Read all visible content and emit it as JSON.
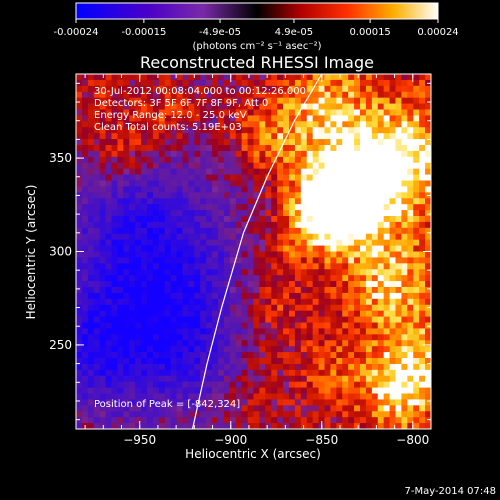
{
  "colorbar": {
    "tick_labels": [
      "-0.00024",
      "-0.00015",
      "-4.9e-05",
      "4.9e-05",
      "0.00015",
      "0.00024"
    ],
    "tick_values": [
      -0.00024,
      -0.00015,
      -4.9e-05,
      4.9e-05,
      0.00015,
      0.00024
    ],
    "range": [
      -0.00024,
      0.00024
    ],
    "unit_label": "(photons cm⁻² s⁻¹ asec⁻²)"
  },
  "annotations": {
    "time_range": "30-Jul-2012 00:08:04.000 to 00:12:26.000",
    "detectors": "Detectors: 3F 5F 6F 7F 8F 9F, Att 0",
    "energy_range": "Energy Range: 12.0 - 25.0 keV",
    "clean_counts": "Clean     Total counts: 5.19E+03",
    "peak": "Position of Peak = [-842,324]"
  },
  "footer": {
    "date": "7-May-2014 07:48"
  },
  "chart_data": {
    "type": "heatmap",
    "title": "Reconstructed RHESSI Image",
    "xlabel": "Heliocentric X (arcsec)",
    "ylabel": "Heliocentric Y (arcsec)",
    "xlim": [
      -985,
      -790
    ],
    "ylim": [
      205,
      395
    ],
    "x_ticks": [
      -950,
      -900,
      -850,
      -800
    ],
    "x_tick_labels": [
      "−950",
      "−900",
      "−850",
      "−800"
    ],
    "y_ticks": [
      250,
      300,
      350
    ],
    "y_tick_labels": [
      "250",
      "300",
      "350"
    ],
    "peak": {
      "x": -842,
      "y": 324
    },
    "limb_curve": [
      [
        -921,
        205
      ],
      [
        -913,
        240
      ],
      [
        -905,
        270
      ],
      [
        -893,
        310
      ],
      [
        -880,
        340
      ],
      [
        -865,
        370
      ],
      [
        -850,
        395
      ]
    ],
    "hot_spots": [
      {
        "x": -843,
        "y": 324,
        "amp": 1.3,
        "sigma": 15
      },
      {
        "x": -830,
        "y": 340,
        "amp": 0.55,
        "sigma": 20
      },
      {
        "x": -805,
        "y": 350,
        "amp": 0.7,
        "sigma": 22
      },
      {
        "x": -815,
        "y": 285,
        "amp": 0.6,
        "sigma": 18
      },
      {
        "x": -800,
        "y": 240,
        "amp": 0.6,
        "sigma": 18
      },
      {
        "x": -810,
        "y": 220,
        "amp": 0.4,
        "sigma": 14
      },
      {
        "x": -845,
        "y": 235,
        "amp": 0.3,
        "sigma": 14
      },
      {
        "x": -850,
        "y": 380,
        "amp": 0.55,
        "sigma": 18
      },
      {
        "x": -880,
        "y": 360,
        "amp": 0.45,
        "sigma": 14
      },
      {
        "x": -960,
        "y": 355,
        "amp": 0.4,
        "sigma": 14
      },
      {
        "x": -935,
        "y": 375,
        "amp": 0.35,
        "sigma": 12
      },
      {
        "x": -975,
        "y": 385,
        "amp": 0.3,
        "sigma": 12
      },
      {
        "x": -880,
        "y": 270,
        "amp": 0.35,
        "sigma": 16
      },
      {
        "x": -870,
        "y": 305,
        "amp": 0.3,
        "sigma": 12
      },
      {
        "x": -890,
        "y": 225,
        "amp": 0.2,
        "sigma": 14
      }
    ],
    "cold_spots": [
      {
        "x": -950,
        "y": 265,
        "amp": -0.7,
        "sigma": 30
      },
      {
        "x": -930,
        "y": 300,
        "amp": -0.5,
        "sigma": 30
      },
      {
        "x": -975,
        "y": 245,
        "amp": -0.45,
        "sigma": 18
      },
      {
        "x": -920,
        "y": 245,
        "amp": -0.4,
        "sigma": 22
      },
      {
        "x": -955,
        "y": 320,
        "amp": -0.35,
        "sigma": 20
      }
    ]
  }
}
